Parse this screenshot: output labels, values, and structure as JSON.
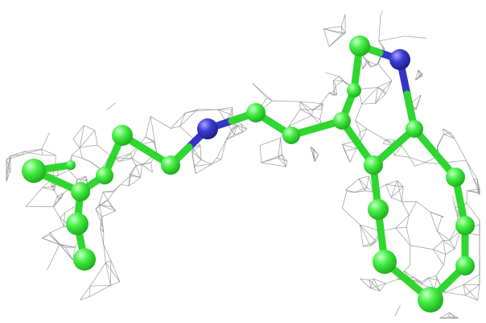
{
  "figure": {
    "subject": "ligand-stick-model-in-electron-density-mesh",
    "background_color": "#ffffff",
    "mesh_color": "#8a8a8a",
    "carbon_color": "#33e633",
    "carbon_highlight": "#b8ffb8",
    "nitrogen_color": "#3434c8",
    "nitrogen_highlight": "#9a9aff",
    "bond_color": "#2fd62f"
  }
}
